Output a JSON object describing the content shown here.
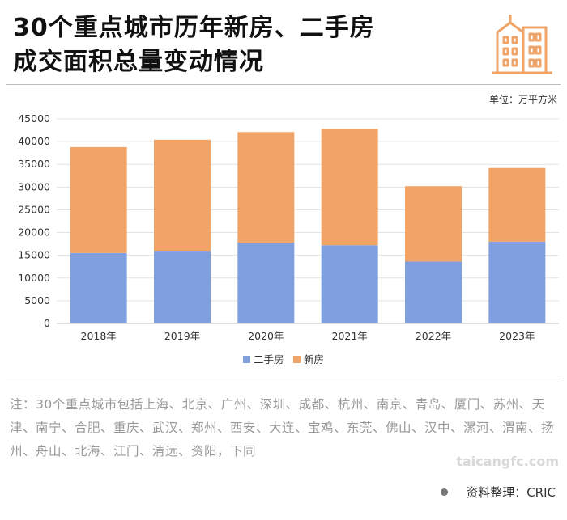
{
  "header": {
    "title_line1": "30个重点城市历年新房、二手房",
    "title_line2": "成交面积总量变动情况",
    "icon": "city-buildings-icon",
    "accent_color": "#f0a468"
  },
  "unit_label": "单位：万平方米",
  "chart_data": {
    "type": "bar",
    "stacked": true,
    "title": "30个重点城市历年新房、二手房成交面积总量变动情况",
    "unit": "万平方米",
    "categories": [
      "2018年",
      "2019年",
      "2020年",
      "2021年",
      "2022年",
      "2023年"
    ],
    "series": [
      {
        "name": "二手房",
        "color": "#7f9fdf",
        "values": [
          15500,
          16000,
          17800,
          17200,
          13600,
          18000
        ]
      },
      {
        "name": "新房",
        "color": "#f0a468",
        "values": [
          23300,
          24400,
          24300,
          25600,
          16600,
          16200
        ]
      }
    ],
    "ylim": [
      0,
      45000
    ],
    "yticks": [
      0,
      5000,
      10000,
      15000,
      20000,
      25000,
      30000,
      35000,
      40000,
      45000
    ],
    "grid": true,
    "legend": "bottom-center"
  },
  "footnote": "注：30个重点城市包括上海、北京、广州、深圳、成都、杭州、南京、青岛、厦门、苏州、天津、南宁、合肥、重庆、武汉、郑州、西安、大连、宝鸡、东莞、佛山、汉中、漯河、渭南、扬州、舟山、北海、江门、清远、资阳，下同",
  "source": "资料整理：CRIC",
  "watermark": "taicangfc.com"
}
